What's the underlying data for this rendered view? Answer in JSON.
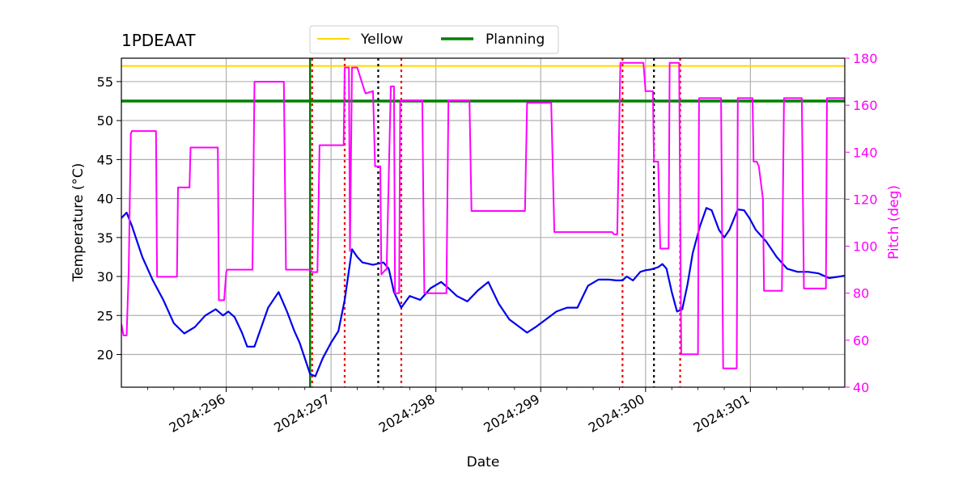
{
  "chart_data": {
    "type": "line",
    "title": "1PDEAAT",
    "xlabel": "Date",
    "ylabel": "Temperature ($^\\circ$C)",
    "ylabel_display": "Temperature (°C)",
    "y2label": "Pitch (deg)",
    "grid": true,
    "legend": {
      "placement": "top-center",
      "entries": [
        "Yellow",
        "Planning"
      ]
    },
    "x_range": [
      295.0,
      301.9
    ],
    "x_ticks": [
      296,
      297,
      298,
      299,
      300,
      301
    ],
    "x_tick_labels": [
      "2024:296",
      "2024:297",
      "2024:298",
      "2024:299",
      "2024:300",
      "2024:301"
    ],
    "ylim": [
      15.8,
      58
    ],
    "y_ticks": [
      20,
      25,
      30,
      35,
      40,
      45,
      50,
      55
    ],
    "y2lim": [
      40,
      180
    ],
    "y2_ticks": [
      40,
      60,
      80,
      100,
      120,
      140,
      160,
      180
    ],
    "colors": {
      "temperature": "#0000ee",
      "pitch": "#ff00ff",
      "yellow": "#ffd700",
      "planning": "#008000",
      "red_marker": "#ee0000",
      "black_marker": "#000000",
      "grid": "#b0b0b0"
    },
    "hlines": [
      {
        "name": "Yellow",
        "y": 57.0
      },
      {
        "name": "Planning",
        "y": 52.5
      }
    ],
    "vlines": [
      {
        "x": 296.8,
        "kind": "planning"
      },
      {
        "x": 296.82,
        "kind": "red"
      },
      {
        "x": 297.13,
        "kind": "red"
      },
      {
        "x": 297.45,
        "kind": "black"
      },
      {
        "x": 297.67,
        "kind": "red"
      },
      {
        "x": 299.78,
        "kind": "red"
      },
      {
        "x": 300.08,
        "kind": "black"
      },
      {
        "x": 300.33,
        "kind": "red"
      }
    ],
    "series": [
      {
        "name": "",
        "axis": "temperature",
        "x": [
          295.0,
          295.05,
          295.1,
          295.15,
          295.2,
          295.3,
          295.4,
          295.5,
          295.6,
          295.7,
          295.8,
          295.9,
          295.97,
          296.02,
          296.08,
          296.15,
          296.2,
          296.27,
          296.4,
          296.5,
          296.58,
          296.65,
          296.7,
          296.8,
          296.85,
          296.92,
          297.0,
          297.07,
          297.13,
          297.2,
          297.25,
          297.3,
          297.4,
          297.5,
          297.55,
          297.6,
          297.67,
          297.75,
          297.85,
          297.95,
          298.05,
          298.12,
          298.2,
          298.3,
          298.4,
          298.5,
          298.6,
          298.7,
          298.8,
          298.87,
          298.95,
          299.05,
          299.15,
          299.25,
          299.35,
          299.45,
          299.55,
          299.65,
          299.72,
          299.78,
          299.82,
          299.88,
          299.95,
          300.0,
          300.05,
          300.12,
          300.16,
          300.2,
          300.25,
          300.3,
          300.35,
          300.4,
          300.45,
          300.52,
          300.58,
          300.63,
          300.7,
          300.75,
          300.8,
          300.88,
          300.94,
          300.99,
          301.05,
          301.15,
          301.25,
          301.35,
          301.45,
          301.55,
          301.65,
          301.75,
          301.9
        ],
        "y": [
          37.5,
          38.2,
          36.5,
          34.5,
          32.5,
          29.5,
          27.0,
          24.0,
          22.7,
          23.5,
          25.0,
          25.8,
          25.0,
          25.5,
          24.8,
          22.8,
          21.0,
          21.0,
          26.0,
          28.0,
          25.5,
          23.0,
          21.5,
          17.5,
          17.2,
          19.5,
          21.5,
          23.0,
          27.0,
          33.5,
          32.5,
          31.8,
          31.5,
          31.8,
          31.0,
          28.0,
          26.0,
          27.5,
          27.0,
          28.5,
          29.3,
          28.5,
          27.5,
          26.8,
          28.2,
          29.3,
          26.5,
          24.5,
          23.5,
          22.8,
          23.5,
          24.5,
          25.5,
          26.0,
          26.0,
          28.8,
          29.6,
          29.6,
          29.5,
          29.5,
          30.0,
          29.5,
          30.6,
          30.8,
          30.9,
          31.2,
          31.6,
          31.0,
          28.0,
          25.5,
          25.8,
          29.0,
          33.0,
          36.5,
          38.8,
          38.5,
          36.0,
          35.0,
          36.0,
          38.6,
          38.5,
          37.5,
          36.0,
          34.5,
          32.5,
          31.0,
          30.6,
          30.6,
          30.4,
          29.8,
          30.1
        ]
      },
      {
        "name": "",
        "axis": "pitch",
        "x": [
          295.0,
          295.02,
          295.05,
          295.07,
          295.09,
          295.1,
          295.33,
          295.34,
          295.53,
          295.54,
          295.65,
          295.66,
          295.92,
          295.93,
          295.98,
          296.0,
          296.01,
          296.25,
          296.27,
          296.3,
          296.55,
          296.57,
          296.8,
          296.82,
          296.87,
          296.89,
          297.12,
          297.13,
          297.17,
          297.18,
          297.2,
          297.22,
          297.25,
          297.32,
          297.33,
          297.4,
          297.42,
          297.47,
          297.48,
          297.52,
          297.53,
          297.57,
          297.6,
          297.61,
          297.65,
          297.66,
          297.68,
          297.7,
          297.87,
          297.89,
          298.1,
          298.12,
          298.32,
          298.34,
          298.52,
          298.54,
          298.85,
          298.87,
          299.1,
          299.13,
          299.33,
          299.34,
          299.68,
          299.7,
          299.73,
          299.76,
          299.78,
          299.98,
          300.0,
          300.07,
          300.08,
          300.12,
          300.14,
          300.15,
          300.22,
          300.23,
          300.25,
          300.26,
          300.32,
          300.34,
          300.5,
          300.51,
          300.53,
          300.72,
          300.74,
          300.87,
          300.88,
          301.02,
          301.03,
          301.06,
          301.08,
          301.12,
          301.13,
          301.3,
          301.32,
          301.49,
          301.51,
          301.72,
          301.73,
          301.75,
          301.76,
          301.9
        ],
        "y": [
          67,
          62,
          62,
          90,
          148,
          149,
          149,
          87,
          87,
          125,
          125,
          142,
          142,
          77,
          77,
          89,
          90,
          90,
          170,
          170,
          170,
          90,
          90,
          89,
          89,
          143,
          143,
          176,
          176,
          98,
          176,
          176,
          176,
          166,
          165,
          166,
          134,
          134,
          88,
          90,
          90,
          168,
          168,
          80,
          80,
          162,
          162,
          162,
          162,
          80,
          80,
          162,
          162,
          115,
          115,
          115,
          115,
          161,
          161,
          106,
          106,
          106,
          106,
          105,
          105,
          178,
          178,
          178,
          166,
          166,
          136,
          136,
          99,
          99,
          99,
          178,
          178,
          178,
          178,
          54,
          54,
          163,
          163,
          163,
          48,
          48,
          163,
          163,
          136,
          136,
          134,
          120,
          81,
          81,
          163,
          163,
          82,
          82,
          163,
          163,
          163,
          163
        ]
      }
    ]
  }
}
